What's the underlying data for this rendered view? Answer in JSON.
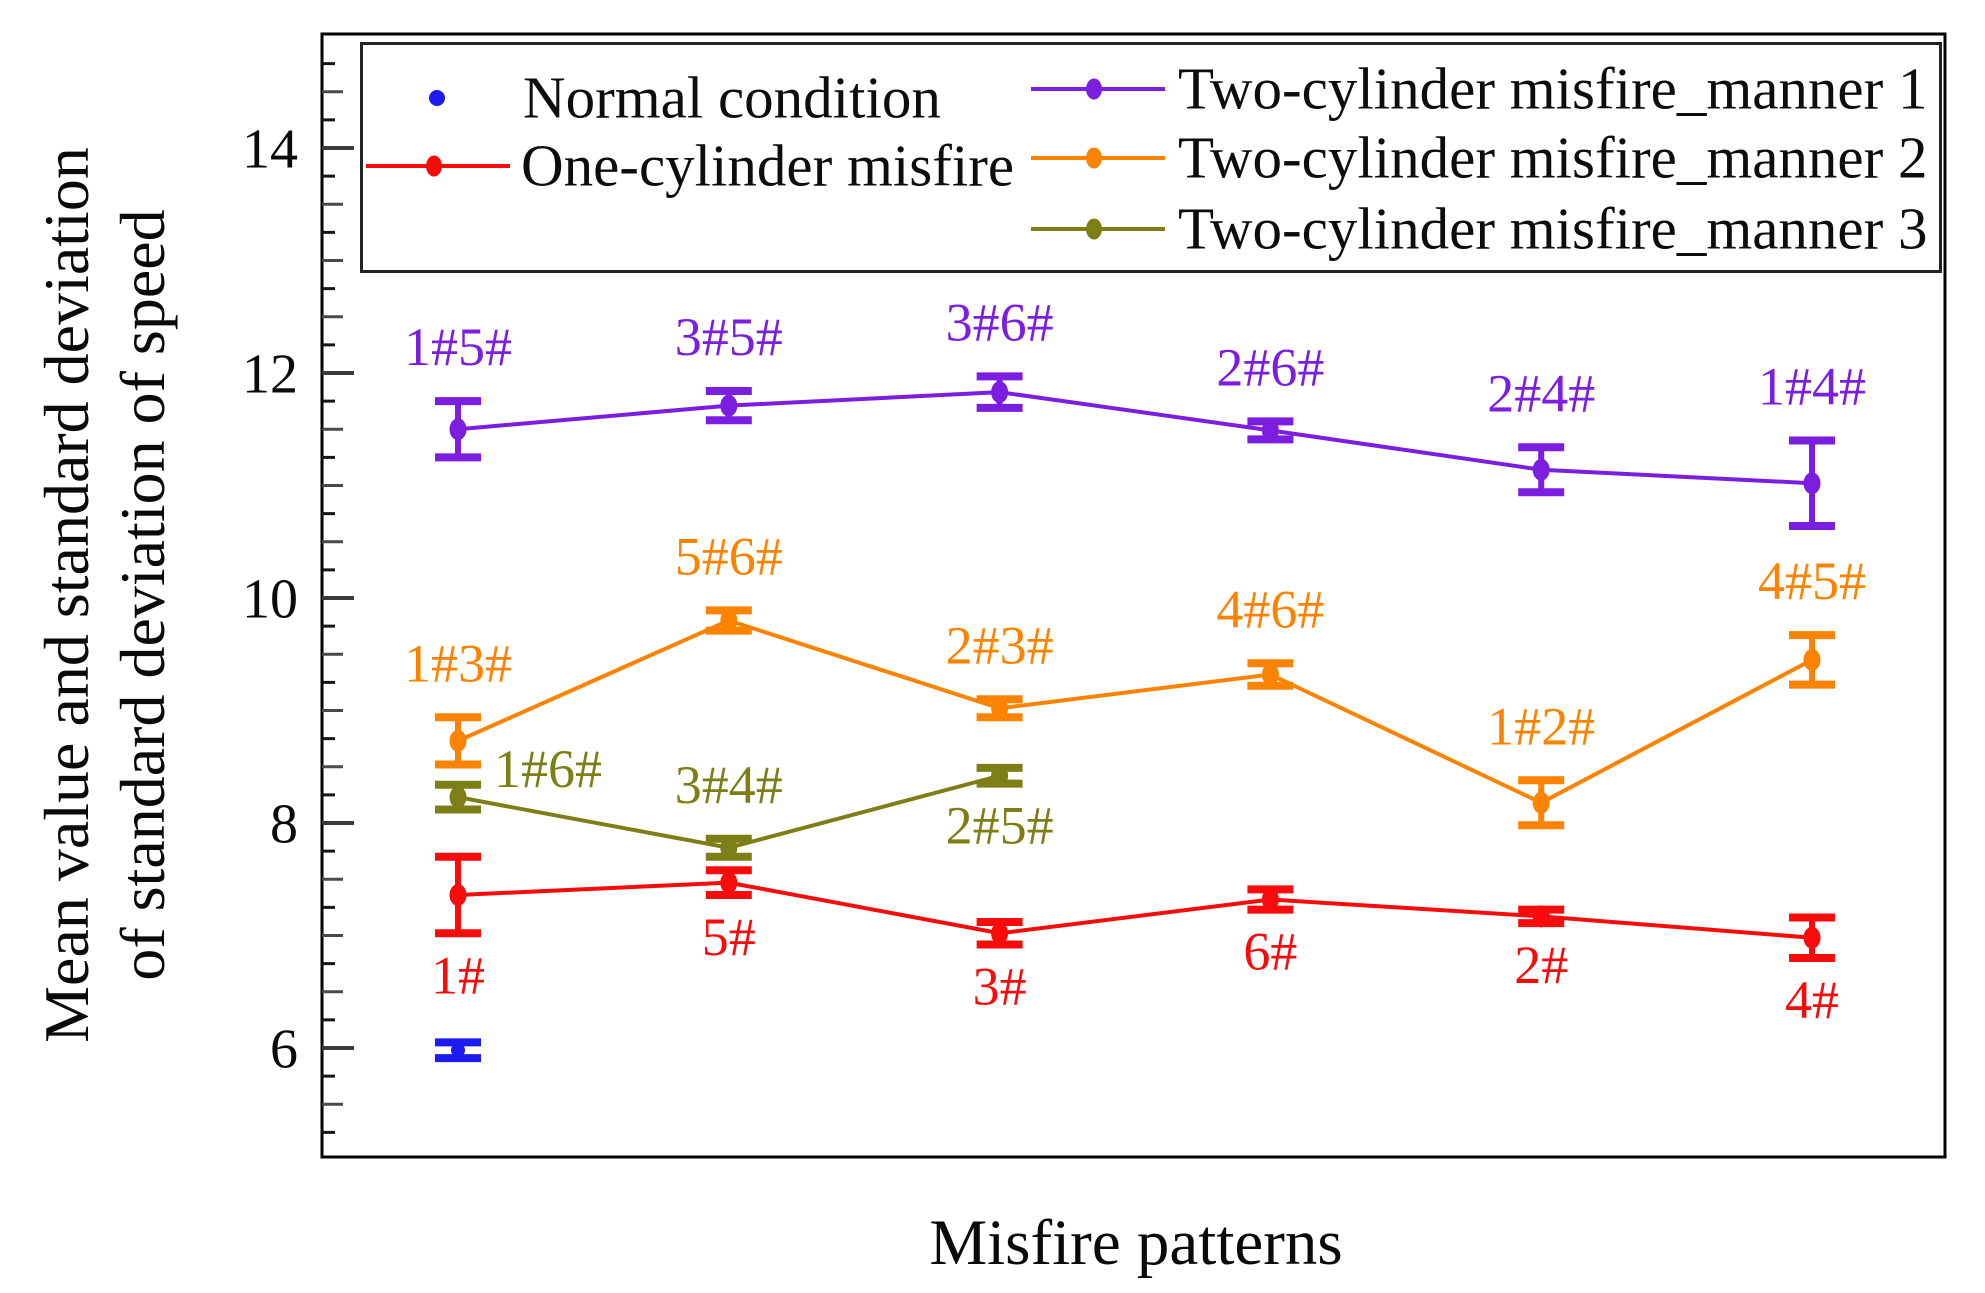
{
  "figure": {
    "background": "#ffffff"
  },
  "y_axis": {
    "title_line1": "Mean value and standard deviation",
    "title_line2": "of standard deviation of speed",
    "tick_labels": [
      "14",
      "12",
      "10",
      "8",
      "6"
    ]
  },
  "x_axis": {
    "title": "Misfire patterns"
  },
  "legend": {
    "items": [
      {
        "label": "Normal condition",
        "color": "#1c1cf2",
        "line": false
      },
      {
        "label": "One-cylinder misfire",
        "color": "#f80b0b",
        "line": true
      },
      {
        "label": "Two-cylinder misfire_manner 1",
        "color": "#7b1ee0",
        "line": true
      },
      {
        "label": "Two-cylinder misfire_manner 2",
        "color": "#fb8300",
        "line": true
      },
      {
        "label": "Two-cylinder misfire_manner 3",
        "color": "#7e7e17",
        "line": true
      }
    ]
  },
  "chart_data": {
    "type": "line",
    "title": "",
    "xlabel": "Misfire patterns",
    "ylabel": "Mean value and standard deviation of standard deviation of speed",
    "x_positions": [
      1,
      2,
      3,
      4,
      5,
      6
    ],
    "ylim": [
      5.0,
      15.05
    ],
    "yticks_major": [
      6,
      8,
      10,
      12,
      14
    ],
    "minor_tick_step": 0.25,
    "grid": false,
    "legend_position": "top-inside",
    "series": [
      {
        "name": "Normal condition",
        "color": "#1c1cf2",
        "x": [
          1
        ],
        "means": [
          5.98
        ],
        "errors": [
          0.07
        ],
        "point_labels": [
          ""
        ],
        "label_placements": [
          "none"
        ]
      },
      {
        "name": "One-cylinder misfire",
        "color": "#f80b0b",
        "x": [
          1,
          2,
          3,
          4,
          5,
          6
        ],
        "means": [
          7.36,
          7.47,
          7.02,
          7.32,
          7.17,
          6.98
        ],
        "errors": [
          0.34,
          0.11,
          0.1,
          0.09,
          0.06,
          0.18
        ],
        "point_labels": [
          "1#",
          "5#",
          "3#",
          "6#",
          "2#",
          "4#"
        ],
        "label_placements": [
          "below",
          "below",
          "below",
          "below",
          "below",
          "below"
        ]
      },
      {
        "name": "Two-cylinder misfire_manner 1",
        "color": "#7b1ee0",
        "x": [
          1,
          2,
          3,
          4,
          5,
          6
        ],
        "means": [
          11.5,
          11.71,
          11.83,
          11.49,
          11.14,
          11.02
        ],
        "errors": [
          0.25,
          0.13,
          0.14,
          0.08,
          0.2,
          0.38
        ],
        "point_labels": [
          "1#5#",
          "3#5#",
          "3#6#",
          "2#6#",
          "2#4#",
          "1#4#"
        ],
        "label_placements": [
          "above",
          "above",
          "above",
          "above",
          "above",
          "above"
        ]
      },
      {
        "name": "Two-cylinder misfire_manner 2",
        "color": "#fb8300",
        "x": [
          1,
          2,
          3,
          4,
          5,
          6
        ],
        "means": [
          8.73,
          9.8,
          9.02,
          9.32,
          8.18,
          9.45
        ],
        "errors": [
          0.21,
          0.09,
          0.08,
          0.1,
          0.2,
          0.22
        ],
        "point_labels": [
          "1#3#",
          "5#6#",
          "2#3#",
          "4#6#",
          "1#2#",
          "4#5#"
        ],
        "label_placements": [
          "above",
          "above",
          "above",
          "above",
          "above",
          "above"
        ]
      },
      {
        "name": "Two-cylinder misfire_manner 3",
        "color": "#7e7e17",
        "x": [
          1,
          2,
          3
        ],
        "means": [
          8.23,
          7.78,
          8.42
        ],
        "errors": [
          0.11,
          0.08,
          0.07
        ],
        "point_labels": [
          "1#6#",
          "3#4#",
          "2#5#"
        ],
        "label_placements": [
          "right",
          "above",
          "below"
        ]
      }
    ]
  }
}
